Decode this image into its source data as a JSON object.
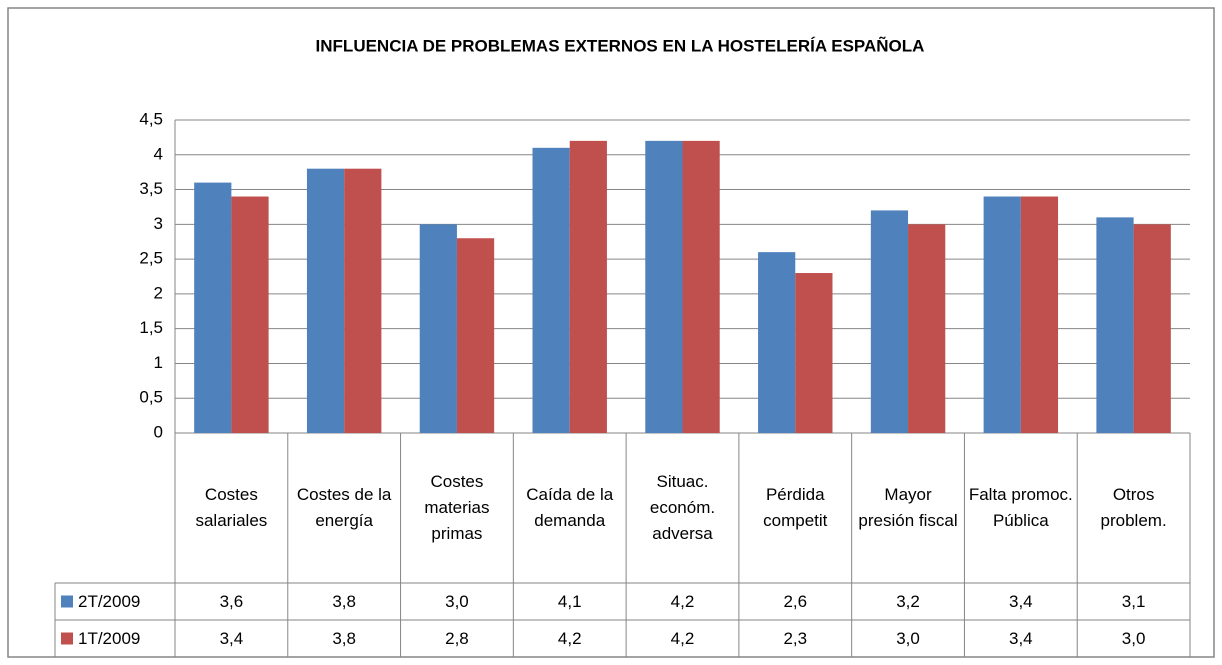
{
  "chart_data": {
    "type": "bar",
    "title": "INFLUENCIA DE PROBLEMAS EXTERNOS EN LA HOSTELERÍA ESPAÑOLA",
    "categories": [
      "Costes salariales",
      "Costes de la energía",
      "Costes materias primas",
      "Caída de la demanda",
      "Situac. económ. adversa",
      "Pérdida competit",
      "Mayor presión fiscal",
      "Falta promoc. Pública",
      "Otros problem."
    ],
    "series": [
      {
        "name": "2T/2009",
        "color": "#4f81bd",
        "values": [
          3.6,
          3.8,
          3.0,
          4.1,
          4.2,
          2.6,
          3.2,
          3.4,
          3.1
        ],
        "value_labels": [
          "3,6",
          "3,8",
          "3,0",
          "4,1",
          "4,2",
          "2,6",
          "3,2",
          "3,4",
          "3,1"
        ]
      },
      {
        "name": "1T/2009",
        "color": "#c0504d",
        "values": [
          3.4,
          3.8,
          2.8,
          4.2,
          4.2,
          2.3,
          3.0,
          3.4,
          3.0
        ],
        "value_labels": [
          "3,4",
          "3,8",
          "2,8",
          "4,2",
          "4,2",
          "2,3",
          "3,0",
          "3,4",
          "3,0"
        ]
      }
    ],
    "ylim": [
      0,
      4.5
    ],
    "yticks": [
      0,
      {
        "value": 0.5,
        "label": "0,5"
      },
      1,
      {
        "value": 1.5,
        "label": "1,5"
      },
      2,
      {
        "value": 2.5,
        "label": "2,5"
      },
      3,
      {
        "value": 3.5,
        "label": "3,5"
      },
      4,
      {
        "value": 4.5,
        "label": "4,5"
      }
    ],
    "grid": true,
    "data_table": true
  }
}
